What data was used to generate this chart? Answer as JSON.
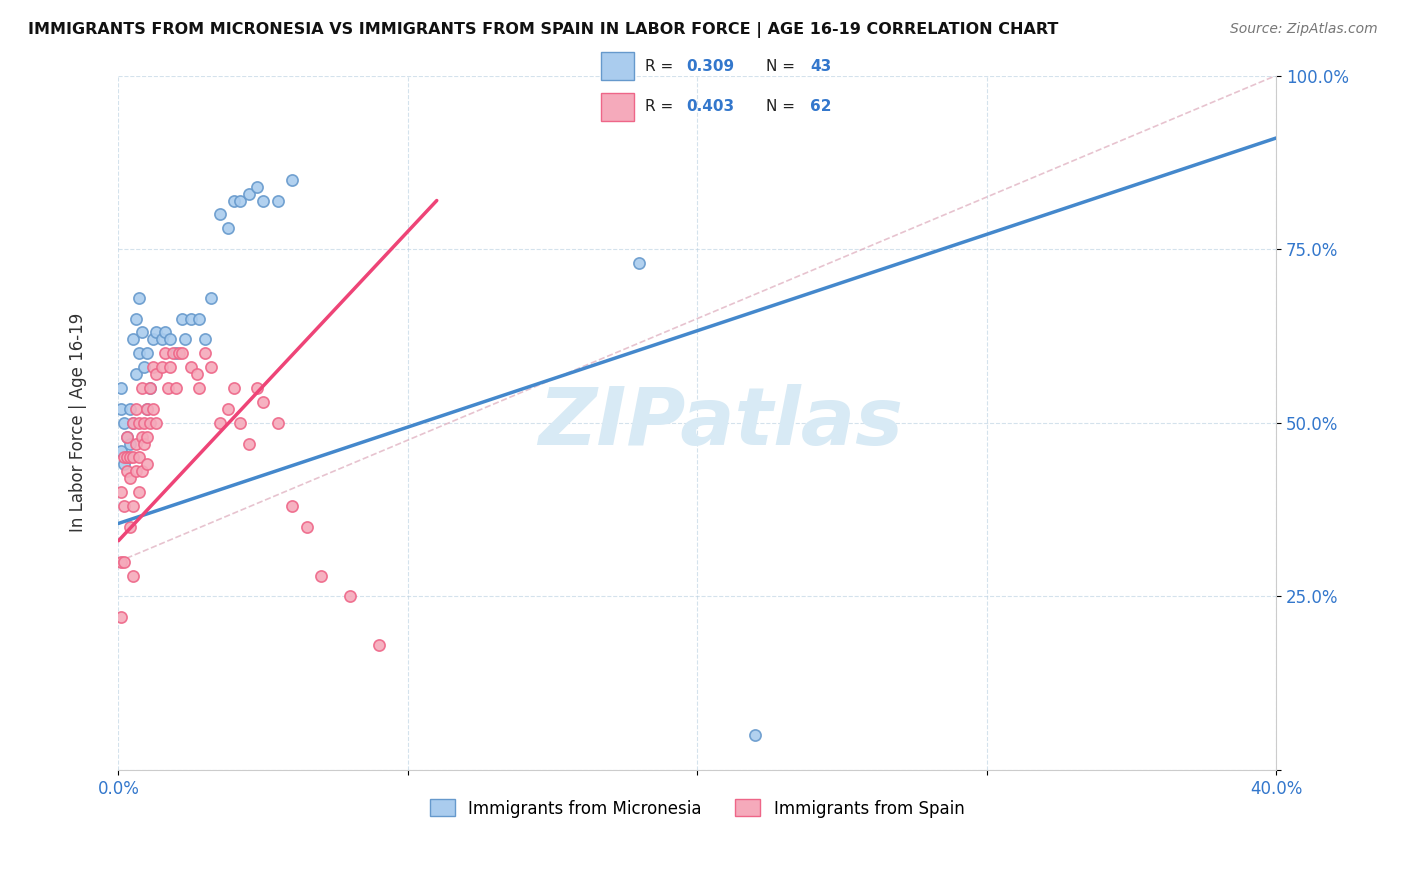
{
  "title": "IMMIGRANTS FROM MICRONESIA VS IMMIGRANTS FROM SPAIN IN LABOR FORCE | AGE 16-19 CORRELATION CHART",
  "source": "Source: ZipAtlas.com",
  "yaxis_label": "In Labor Force | Age 16-19",
  "legend_micronesia": "Immigrants from Micronesia",
  "legend_spain": "Immigrants from Spain",
  "R_micronesia": 0.309,
  "N_micronesia": 43,
  "R_spain": 0.403,
  "N_spain": 62,
  "color_micronesia": "#aaccee",
  "color_spain": "#f5aabb",
  "color_edge_micronesia": "#6699cc",
  "color_edge_spain": "#ee6688",
  "color_line_micronesia": "#4488cc",
  "color_line_spain": "#ee4477",
  "watermark_color": "#d8eaf5",
  "micronesia_x": [
    0.001,
    0.001,
    0.001,
    0.002,
    0.002,
    0.003,
    0.003,
    0.004,
    0.004,
    0.005,
    0.005,
    0.006,
    0.006,
    0.007,
    0.007,
    0.008,
    0.009,
    0.01,
    0.01,
    0.011,
    0.012,
    0.013,
    0.015,
    0.016,
    0.018,
    0.02,
    0.022,
    0.023,
    0.025,
    0.028,
    0.03,
    0.032,
    0.035,
    0.038,
    0.04,
    0.042,
    0.045,
    0.048,
    0.05,
    0.055,
    0.06,
    0.18,
    0.22
  ],
  "micronesia_y": [
    0.46,
    0.52,
    0.55,
    0.44,
    0.5,
    0.45,
    0.48,
    0.47,
    0.52,
    0.5,
    0.62,
    0.57,
    0.65,
    0.6,
    0.68,
    0.63,
    0.58,
    0.52,
    0.6,
    0.55,
    0.62,
    0.63,
    0.62,
    0.63,
    0.62,
    0.6,
    0.65,
    0.62,
    0.65,
    0.65,
    0.62,
    0.68,
    0.8,
    0.78,
    0.82,
    0.82,
    0.83,
    0.84,
    0.82,
    0.82,
    0.85,
    0.73,
    0.05
  ],
  "spain_x": [
    0.001,
    0.001,
    0.001,
    0.002,
    0.002,
    0.002,
    0.003,
    0.003,
    0.003,
    0.004,
    0.004,
    0.004,
    0.005,
    0.005,
    0.005,
    0.005,
    0.006,
    0.006,
    0.006,
    0.007,
    0.007,
    0.007,
    0.008,
    0.008,
    0.008,
    0.009,
    0.009,
    0.01,
    0.01,
    0.01,
    0.011,
    0.011,
    0.012,
    0.012,
    0.013,
    0.013,
    0.015,
    0.016,
    0.017,
    0.018,
    0.019,
    0.02,
    0.021,
    0.022,
    0.025,
    0.027,
    0.028,
    0.03,
    0.032,
    0.035,
    0.038,
    0.04,
    0.042,
    0.045,
    0.048,
    0.05,
    0.055,
    0.06,
    0.065,
    0.07,
    0.08,
    0.09
  ],
  "spain_y": [
    0.4,
    0.3,
    0.22,
    0.45,
    0.38,
    0.3,
    0.45,
    0.48,
    0.43,
    0.45,
    0.42,
    0.35,
    0.5,
    0.45,
    0.38,
    0.28,
    0.52,
    0.47,
    0.43,
    0.5,
    0.45,
    0.4,
    0.48,
    0.55,
    0.43,
    0.5,
    0.47,
    0.52,
    0.48,
    0.44,
    0.55,
    0.5,
    0.58,
    0.52,
    0.5,
    0.57,
    0.58,
    0.6,
    0.55,
    0.58,
    0.6,
    0.55,
    0.6,
    0.6,
    0.58,
    0.57,
    0.55,
    0.6,
    0.58,
    0.5,
    0.52,
    0.55,
    0.5,
    0.47,
    0.55,
    0.53,
    0.5,
    0.38,
    0.35,
    0.28,
    0.25,
    0.18
  ],
  "xlim": [
    0.0,
    0.4
  ],
  "ylim": [
    0.0,
    1.0
  ],
  "yticks": [
    0.0,
    0.25,
    0.5,
    0.75,
    1.0
  ],
  "ytick_labels": [
    "",
    "25.0%",
    "50.0%",
    "75.0%",
    "100.0%"
  ],
  "xticks": [
    0.0,
    0.1,
    0.2,
    0.3,
    0.4
  ],
  "xtick_labels": [
    "0.0%",
    "",
    "",
    "",
    "40.0%"
  ],
  "blue_line_x0": 0.0,
  "blue_line_y0": 0.355,
  "blue_line_x1": 0.4,
  "blue_line_y1": 0.91,
  "pink_line_x0": 0.0,
  "pink_line_y0": 0.33,
  "pink_line_x1": 0.11,
  "pink_line_y1": 0.82
}
